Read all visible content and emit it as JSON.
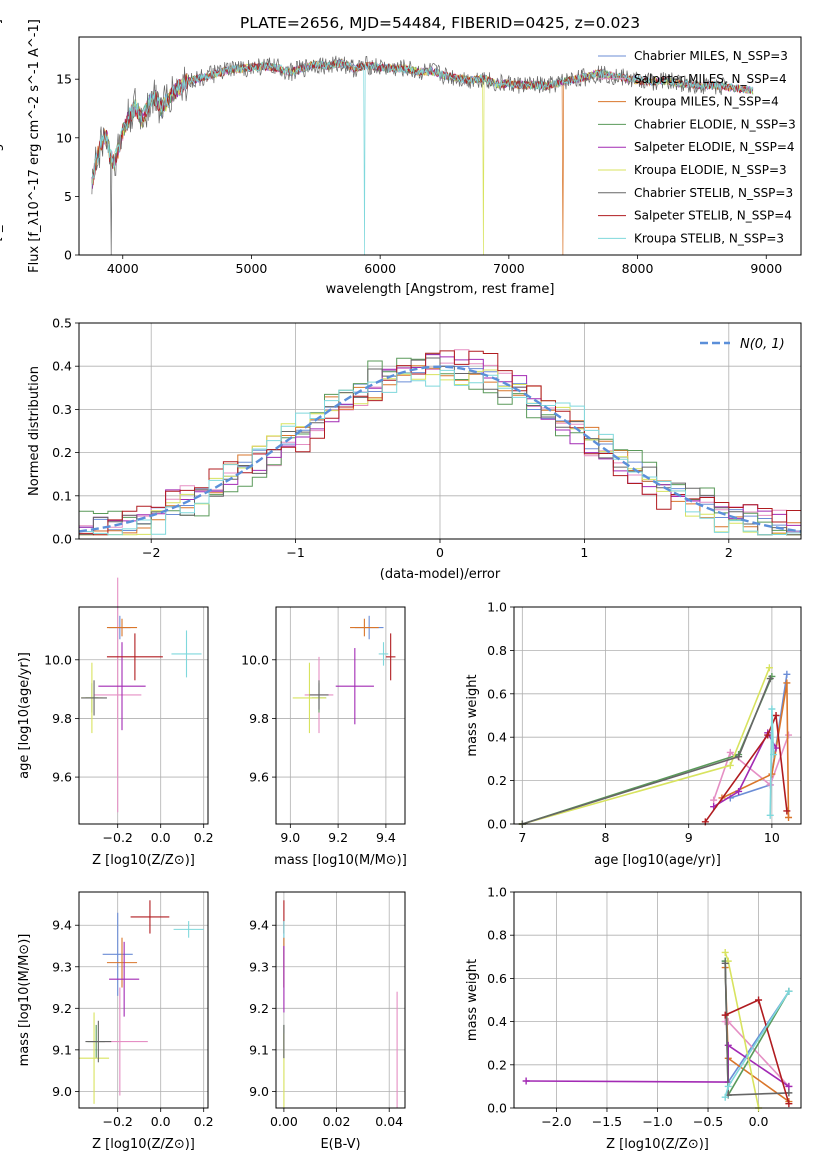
{
  "figure_title": "PLATE=2656, MJD=54484, FIBERID=0425, z=0.023",
  "colors": [
    "#6b8dd6",
    "#e58fc4",
    "#d9762b",
    "#5a9a5a",
    "#a22ab4",
    "#d8e35f",
    "#666666",
    "#b01c20",
    "#7fd8dc"
  ],
  "chart_data": [
    {
      "id": "spectrum",
      "type": "line",
      "title": "PLATE=2656, MJD=54484, FIBERID=0425, z=0.023",
      "xlabel": "wavelength [Angstrom, rest frame]",
      "ylabel": "Flux [f_λ10^-17 erg cm^-2 s^-1 A^-1]",
      "xlim": [
        3660,
        9270
      ],
      "ylim": [
        0,
        18.6
      ],
      "xticks": [
        "4000",
        "5000",
        "6000",
        "7000",
        "8000",
        "9000"
      ],
      "yticks": [
        "0",
        "5",
        "10",
        "15"
      ],
      "grid": false,
      "legend": "top-right",
      "x": [
        3760,
        3780,
        3800,
        3830,
        3860,
        3880,
        3900,
        3930,
        3970,
        4000,
        4050,
        4100,
        4150,
        4200,
        4250,
        4300,
        4400,
        4500,
        4600,
        4700,
        4800,
        4900,
        5000,
        5100,
        5200,
        5300,
        5400,
        5500,
        5600,
        5700,
        5800,
        5900,
        6000,
        6100,
        6200,
        6300,
        6400,
        6500,
        6600,
        6700,
        6800,
        6900,
        7000,
        7100,
        7200,
        7300,
        7400,
        7500,
        7600,
        7700,
        7800,
        7900,
        8000,
        8100,
        8200,
        8300,
        8400,
        8500,
        8600,
        8700,
        8800,
        8900
      ],
      "y": [
        6.0,
        7.2,
        8.3,
        9.5,
        10.2,
        9.8,
        8.5,
        7.8,
        9.2,
        10.5,
        11.8,
        12.6,
        11.5,
        12.9,
        13.5,
        12.5,
        14.0,
        14.8,
        15.1,
        15.4,
        15.7,
        15.9,
        16.0,
        16.1,
        16.0,
        15.6,
        15.9,
        16.3,
        16.1,
        16.4,
        15.9,
        16.2,
        16.0,
        15.9,
        15.9,
        15.6,
        15.7,
        15.3,
        15.1,
        14.9,
        15.1,
        14.6,
        14.6,
        14.5,
        14.5,
        14.4,
        14.7,
        15.0,
        15.2,
        15.5,
        15.3,
        15.1,
        14.9,
        14.8,
        14.9,
        14.7,
        14.6,
        14.4,
        14.5,
        14.3,
        14.2,
        14.0
      ],
      "series": [
        {
          "name": "Chabrier MILES, N_SSP=3",
          "color": "#6b8dd6",
          "dip_x": null
        },
        {
          "name": "Salpeter MILES, N_SSP=4",
          "color": "#e58fc4",
          "dip_x": null
        },
        {
          "name": "Kroupa MILES, N_SSP=4",
          "color": "#d9762b",
          "dip_x": 7420
        },
        {
          "name": "Chabrier ELODIE, N_SSP=3",
          "color": "#5a9a5a",
          "dip_x": null
        },
        {
          "name": "Salpeter ELODIE, N_SSP=4",
          "color": "#a22ab4",
          "dip_x": null
        },
        {
          "name": "Kroupa ELODIE, N_SSP=3",
          "color": "#d8e35f",
          "dip_x": 6800
        },
        {
          "name": "Chabrier STELIB, N_SSP=3",
          "color": "#666666",
          "dip_x": 3910
        },
        {
          "name": "Salpeter STELIB, N_SSP=4",
          "color": "#b01c20",
          "dip_x": null
        },
        {
          "name": "Kroupa STELIB, N_SSP=3",
          "color": "#7fd8dc",
          "dip_x": 5880
        }
      ]
    },
    {
      "id": "residuals",
      "type": "histogram",
      "xlabel": "(data-model)/error",
      "ylabel": "Normed distribution",
      "xlim": [
        -2.5,
        2.5
      ],
      "ylim": [
        0,
        0.5
      ],
      "xticks": [
        "−2",
        "−1",
        "0",
        "1",
        "2"
      ],
      "yticks": [
        "0.0",
        "0.1",
        "0.2",
        "0.3",
        "0.4",
        "0.5"
      ],
      "grid": true,
      "legend": "top-right",
      "reference_curve": {
        "name": "N(0, 1)",
        "color": "#5b8fd9",
        "mean": 0,
        "sigma": 1
      },
      "bin_edges_start": -2.5,
      "bin_width": 0.1,
      "offsets": [
        0.0,
        0.02,
        -0.015,
        0.03,
        -0.02,
        0.025,
        -0.01,
        0.035,
        -0.03
      ]
    },
    {
      "id": "age-vs-Z",
      "type": "errorbar",
      "xlabel": "Z [log10(Z/Z⊙)]",
      "ylabel": "age  [log10(age/yr)]",
      "xlim": [
        -0.38,
        0.22
      ],
      "ylim": [
        9.44,
        10.18
      ],
      "xticks": [
        "−0.2",
        "0.0",
        "0.2"
      ],
      "xtick_values": [
        -0.2,
        0.0,
        0.2
      ],
      "yticks": [
        "9.6",
        "9.8",
        "10.0"
      ],
      "ytick_values": [
        9.6,
        9.8,
        10.0
      ],
      "grid": true,
      "points": [
        {
          "x": -0.19,
          "y": 10.11,
          "xerr": 0.05,
          "yerr": 0.04,
          "color": "#6b8dd6"
        },
        {
          "x": -0.2,
          "y": 9.88,
          "xerr": 0.11,
          "yerr": 0.4,
          "color": "#e58fc4"
        },
        {
          "x": -0.18,
          "y": 10.11,
          "xerr": 0.07,
          "yerr": 0.03,
          "color": "#d9762b"
        },
        {
          "x": -0.32,
          "y": 9.87,
          "xerr": 0.03,
          "yerr": 0.05,
          "color": "#5a9a5a"
        },
        {
          "x": -0.18,
          "y": 9.91,
          "xerr": 0.11,
          "yerr": 0.15,
          "color": "#a22ab4"
        },
        {
          "x": -0.32,
          "y": 9.87,
          "xerr": 0.05,
          "yerr": 0.12,
          "color": "#d8e35f"
        },
        {
          "x": -0.31,
          "y": 9.87,
          "xerr": 0.06,
          "yerr": 0.06,
          "color": "#666666"
        },
        {
          "x": -0.12,
          "y": 10.01,
          "xerr": 0.13,
          "yerr": 0.08,
          "color": "#b01c20"
        },
        {
          "x": 0.12,
          "y": 10.02,
          "xerr": 0.07,
          "yerr": 0.08,
          "color": "#7fd8dc"
        }
      ]
    },
    {
      "id": "age-vs-mass",
      "type": "errorbar",
      "xlabel": "mass [log10(M/M⊙)]",
      "ylabel": "",
      "xlim": [
        8.94,
        9.48
      ],
      "ylim": [
        9.44,
        10.18
      ],
      "xticks": [
        "9.0",
        "9.2",
        "9.4"
      ],
      "xtick_values": [
        9.0,
        9.2,
        9.4
      ],
      "yticks": [
        "9.6",
        "9.8",
        "10.0"
      ],
      "ytick_values": [
        9.6,
        9.8,
        10.0
      ],
      "grid": true,
      "points": [
        {
          "x": 9.33,
          "y": 10.11,
          "xerr": 0.06,
          "yerr": 0.04,
          "color": "#6b8dd6"
        },
        {
          "x": 9.12,
          "y": 9.88,
          "xerr": 0.06,
          "yerr": 0.13,
          "color": "#e58fc4"
        },
        {
          "x": 9.31,
          "y": 10.11,
          "xerr": 0.06,
          "yerr": 0.03,
          "color": "#d9762b"
        },
        {
          "x": 9.12,
          "y": 9.87,
          "xerr": 0.03,
          "yerr": 0.05,
          "color": "#5a9a5a"
        },
        {
          "x": 9.27,
          "y": 9.91,
          "xerr": 0.08,
          "yerr": 0.13,
          "color": "#a22ab4"
        },
        {
          "x": 9.08,
          "y": 9.87,
          "xerr": 0.07,
          "yerr": 0.12,
          "color": "#d8e35f"
        },
        {
          "x": 9.12,
          "y": 9.88,
          "xerr": 0.04,
          "yerr": 0.05,
          "color": "#666666"
        },
        {
          "x": 9.42,
          "y": 10.01,
          "xerr": 0.02,
          "yerr": 0.08,
          "color": "#b01c20"
        },
        {
          "x": 9.39,
          "y": 10.02,
          "xerr": 0.02,
          "yerr": 0.04,
          "color": "#7fd8dc"
        }
      ]
    },
    {
      "id": "weight-vs-age",
      "type": "line",
      "xlabel": "age  [log10(age/yr)]",
      "ylabel": "mass weight",
      "xlim": [
        6.9,
        10.35
      ],
      "ylim": [
        0,
        1.0
      ],
      "xticks": [
        "7",
        "8",
        "9",
        "10"
      ],
      "xtick_values": [
        7,
        8,
        9,
        10
      ],
      "yticks": [
        "0.0",
        "0.2",
        "0.4",
        "0.6",
        "0.8",
        "1.0"
      ],
      "ytick_values": [
        0,
        0.2,
        0.4,
        0.6,
        0.8,
        1.0
      ],
      "grid": true,
      "series": [
        {
          "color": "#6b8dd6",
          "x": [
            9.5,
            9.98,
            10.18
          ],
          "y": [
            0.12,
            0.18,
            0.69
          ]
        },
        {
          "color": "#e58fc4",
          "x": [
            9.3,
            9.5,
            9.98,
            10.2
          ],
          "y": [
            0.11,
            0.33,
            0.18,
            0.41
          ]
        },
        {
          "color": "#d9762b",
          "x": [
            9.4,
            10.0,
            10.18,
            10.2
          ],
          "y": [
            0.12,
            0.23,
            0.65,
            0.03
          ]
        },
        {
          "color": "#5a9a5a",
          "x": [
            7.0,
            9.6,
            10.0
          ],
          "y": [
            0.0,
            0.32,
            0.68
          ]
        },
        {
          "color": "#a22ab4",
          "x": [
            9.3,
            9.6,
            9.95,
            10.05
          ],
          "y": [
            0.08,
            0.15,
            0.42,
            0.35
          ]
        },
        {
          "color": "#d8e35f",
          "x": [
            7.0,
            9.5,
            9.97
          ],
          "y": [
            0.0,
            0.27,
            0.72
          ]
        },
        {
          "color": "#666666",
          "x": [
            7.0,
            9.6,
            9.98
          ],
          "y": [
            0.0,
            0.31,
            0.67
          ]
        },
        {
          "color": "#b01c20",
          "x": [
            9.2,
            9.95,
            10.05,
            10.18
          ],
          "y": [
            0.01,
            0.41,
            0.5,
            0.06
          ]
        },
        {
          "color": "#7fd8dc",
          "x": [
            9.98,
            10.0,
            10.02
          ],
          "y": [
            0.04,
            0.53,
            0.32
          ]
        }
      ]
    },
    {
      "id": "mass-vs-Z",
      "type": "errorbar",
      "xlabel": "Z [log10(Z/Z⊙)]",
      "ylabel": "mass [log10(M/M⊙)]",
      "xlim": [
        -0.38,
        0.22
      ],
      "ylim": [
        8.96,
        9.48
      ],
      "xticks": [
        "−0.2",
        "0.0",
        "0.2"
      ],
      "xtick_values": [
        -0.2,
        0.0,
        0.2
      ],
      "yticks": [
        "9.0",
        "9.1",
        "9.2",
        "9.3",
        "9.4"
      ],
      "ytick_values": [
        9.0,
        9.1,
        9.2,
        9.3,
        9.4
      ],
      "grid": true,
      "points": [
        {
          "x": -0.2,
          "y": 9.33,
          "xerr": 0.07,
          "yerr": 0.1,
          "color": "#6b8dd6"
        },
        {
          "x": -0.19,
          "y": 9.12,
          "xerr": 0.13,
          "yerr": 0.13,
          "color": "#e58fc4"
        },
        {
          "x": -0.18,
          "y": 9.31,
          "xerr": 0.07,
          "yerr": 0.06,
          "color": "#d9762b"
        },
        {
          "x": -0.3,
          "y": 9.12,
          "xerr": 0.04,
          "yerr": 0.04,
          "color": "#5a9a5a"
        },
        {
          "x": -0.17,
          "y": 9.27,
          "xerr": 0.07,
          "yerr": 0.09,
          "color": "#a22ab4"
        },
        {
          "x": -0.31,
          "y": 9.08,
          "xerr": 0.07,
          "yerr": 0.11,
          "color": "#d8e35f"
        },
        {
          "x": -0.29,
          "y": 9.12,
          "xerr": 0.06,
          "yerr": 0.05,
          "color": "#666666"
        },
        {
          "x": -0.05,
          "y": 9.42,
          "xerr": 0.09,
          "yerr": 0.04,
          "color": "#b01c20"
        },
        {
          "x": 0.13,
          "y": 9.39,
          "xerr": 0.07,
          "yerr": 0.02,
          "color": "#7fd8dc"
        }
      ]
    },
    {
      "id": "mass-vs-ebv",
      "type": "errorbar",
      "xlabel": "E(B-V)",
      "ylabel": "",
      "xlim": [
        -0.003,
        0.046
      ],
      "ylim": [
        8.96,
        9.48
      ],
      "xticks": [
        "0.00",
        "0.02",
        "0.04"
      ],
      "xtick_values": [
        0.0,
        0.02,
        0.04
      ],
      "yticks": [
        "9.0",
        "9.1",
        "9.2",
        "9.3",
        "9.4"
      ],
      "ytick_values": [
        9.0,
        9.1,
        9.2,
        9.3,
        9.4
      ],
      "grid": true,
      "points": [
        {
          "x": 0.0,
          "y": 9.33,
          "xerr": 0.0,
          "yerr": 0.08,
          "color": "#6b8dd6"
        },
        {
          "x": 0.043,
          "y": 9.1,
          "xerr": 0.0,
          "yerr": 0.14,
          "color": "#e58fc4"
        },
        {
          "x": 0.0,
          "y": 9.31,
          "xerr": 0.0,
          "yerr": 0.06,
          "color": "#d9762b"
        },
        {
          "x": 0.0,
          "y": 9.12,
          "xerr": 0.0,
          "yerr": 0.04,
          "color": "#5a9a5a"
        },
        {
          "x": 0.0,
          "y": 9.27,
          "xerr": 0.0,
          "yerr": 0.08,
          "color": "#a22ab4"
        },
        {
          "x": 0.0,
          "y": 9.05,
          "xerr": 0.0,
          "yerr": 0.09,
          "color": "#d8e35f"
        },
        {
          "x": 0.0,
          "y": 9.12,
          "xerr": 0.0,
          "yerr": 0.04,
          "color": "#666666"
        },
        {
          "x": 0.0,
          "y": 9.42,
          "xerr": 0.0,
          "yerr": 0.04,
          "color": "#b01c20"
        },
        {
          "x": 0.0,
          "y": 9.39,
          "xerr": 0.0,
          "yerr": 0.02,
          "color": "#7fd8dc"
        }
      ]
    },
    {
      "id": "weight-vs-Z",
      "type": "line",
      "xlabel": "Z [log10(Z/Z⊙)]",
      "ylabel": "mass weight",
      "xlim": [
        -2.42,
        0.42
      ],
      "ylim": [
        0,
        1.0
      ],
      "xticks": [
        "−2.0",
        "−1.5",
        "−1.0",
        "−0.5",
        "0.0"
      ],
      "xtick_values": [
        -2.0,
        -1.5,
        -1.0,
        -0.5,
        0.0
      ],
      "yticks": [
        "0.0",
        "0.2",
        "0.4",
        "0.6",
        "0.8",
        "1.0"
      ],
      "ytick_values": [
        0,
        0.2,
        0.4,
        0.6,
        0.8,
        1.0
      ],
      "grid": true,
      "series": [
        {
          "color": "#6b8dd6",
          "x": [
            -0.33,
            -0.3,
            0.3
          ],
          "y": [
            0.68,
            0.12,
            0.54
          ]
        },
        {
          "color": "#e58fc4",
          "x": [
            -0.33,
            -0.3,
            0.3
          ],
          "y": [
            0.4,
            0.4,
            0.1
          ]
        },
        {
          "color": "#d9762b",
          "x": [
            -0.33,
            -0.3,
            0.3
          ],
          "y": [
            0.65,
            0.23,
            0.03
          ]
        },
        {
          "color": "#5a9a5a",
          "x": [
            -0.33,
            -0.3,
            0.3
          ],
          "y": [
            0.68,
            0.06,
            0.54
          ]
        },
        {
          "color": "#a22ab4",
          "x": [
            -2.3,
            -0.3,
            -0.3,
            0.3
          ],
          "y": [
            0.125,
            0.12,
            0.29,
            0.1
          ]
        },
        {
          "color": "#d8e35f",
          "x": [
            -0.33,
            -0.3,
            0.0
          ],
          "y": [
            0.72,
            0.68,
            0.0
          ]
        },
        {
          "color": "#666666",
          "x": [
            -0.33,
            -0.3,
            0.3
          ],
          "y": [
            0.67,
            0.06,
            0.07
          ]
        },
        {
          "color": "#b01c20",
          "x": [
            -0.33,
            0.0,
            0.3
          ],
          "y": [
            0.43,
            0.5,
            0.02
          ]
        },
        {
          "color": "#7fd8dc",
          "x": [
            -0.33,
            -0.3,
            0.3
          ],
          "y": [
            0.05,
            0.1,
            0.54
          ]
        }
      ]
    }
  ]
}
